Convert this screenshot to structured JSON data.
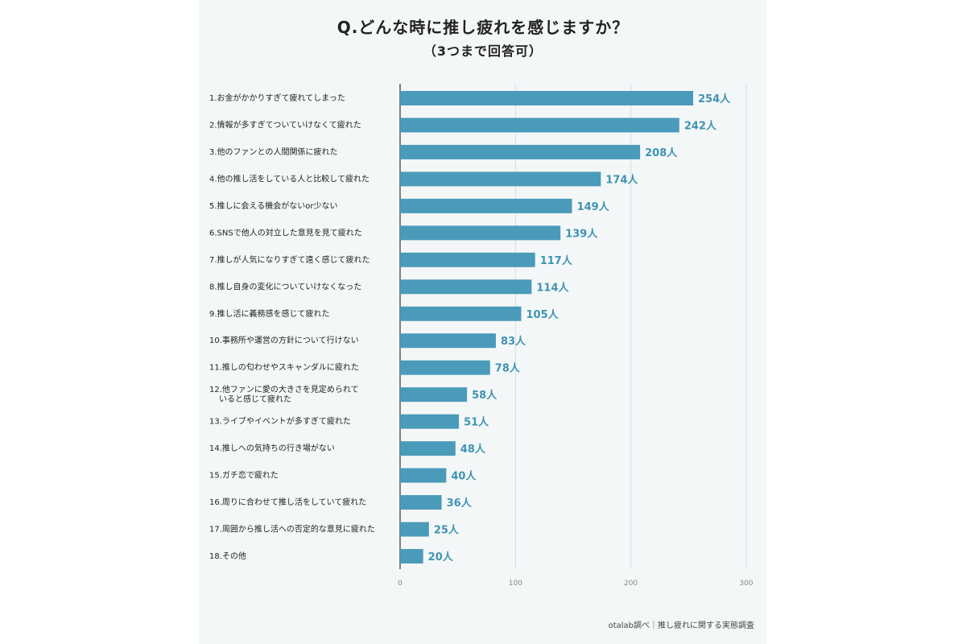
{
  "chart_data": {
    "type": "bar",
    "orientation": "horizontal",
    "title": "Q.どんな時に推し疲れを感じますか？",
    "subtitle": "（3つまで回答可）",
    "categories": [
      "1.お金がかかりすぎて疲れてしまった",
      "2.情報が多すぎてついていけなくて疲れた",
      "3.他のファンとの人間関係に疲れた",
      "4.他の推し活をしている人と比較して疲れた",
      "5.推しに会える機会がないor少ない",
      "6.SNSで他人の対立した意見を見て疲れた",
      "7.推しが人気になりすぎて遠く感じて疲れた",
      "8.推し自身の変化についていけなくなった",
      "9.推し活に義務感を感じて疲れた",
      "10.事務所や運営の方針について行けない",
      "11.推しの匂わせやスキャンダルに疲れた",
      "12.他ファンに愛の大きさを見定められて\nいると感じて疲れた",
      "13.ライブやイベントが多すぎて疲れた",
      "14.推しへの気持ちの行き場がない",
      "15.ガチ恋で疲れた",
      "16.周りに合わせて推し活をしていて疲れた",
      "17.周囲から推し活への否定的な意見に疲れた",
      "18.その他"
    ],
    "values": [
      254,
      242,
      208,
      174,
      149,
      139,
      117,
      114,
      105,
      83,
      78,
      58,
      51,
      48,
      40,
      36,
      25,
      20
    ],
    "value_labels": [
      "254人",
      "242人",
      "208人",
      "174人",
      "149人",
      "139人",
      "117人",
      "114人",
      "105人",
      "83人",
      "78人",
      "58人",
      "51人",
      "48人",
      "40人",
      "36人",
      "25人",
      "20人"
    ],
    "xlim": [
      0,
      300
    ],
    "xticks": [
      "0",
      "100",
      "200",
      "300"
    ],
    "grid": true,
    "bar_color": "#4a9bb9",
    "label_color": "#3f93b3"
  },
  "footer": {
    "source": "otalab調べ｜推し疲れに関する実態調査"
  }
}
